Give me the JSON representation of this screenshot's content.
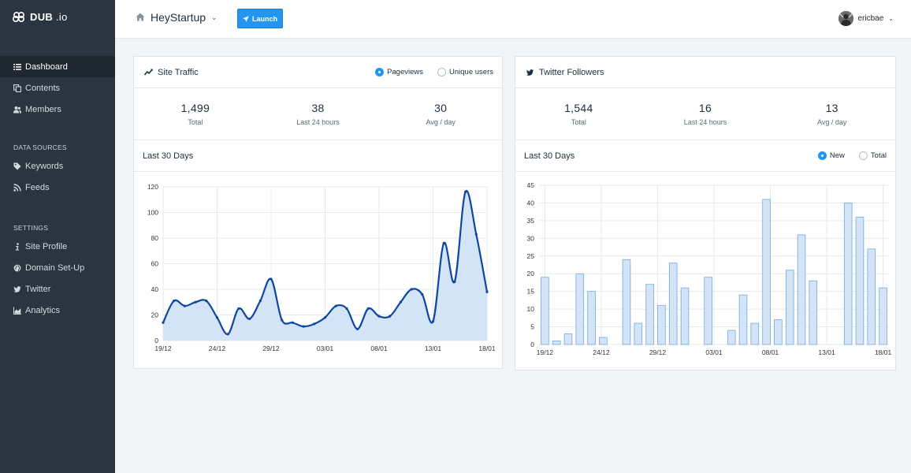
{
  "app": {
    "logo": "DUB",
    "logo_suffix": ".io"
  },
  "sidebar": {
    "main": [
      {
        "label": "Dashboard",
        "icon": "list-icon",
        "active": true
      },
      {
        "label": "Contents",
        "icon": "copy-icon"
      },
      {
        "label": "Members",
        "icon": "users-icon"
      }
    ],
    "sections": [
      {
        "heading": "DATA SOURCES",
        "items": [
          {
            "label": "Keywords",
            "icon": "tag-icon"
          },
          {
            "label": "Feeds",
            "icon": "rss-icon"
          }
        ]
      },
      {
        "heading": "SETTINGS",
        "items": [
          {
            "label": "Site Profile",
            "icon": "info-icon"
          },
          {
            "label": "Domain Set-Up",
            "icon": "globe-icon"
          },
          {
            "label": "Twitter",
            "icon": "twitter-icon"
          },
          {
            "label": "Analytics",
            "icon": "area-chart-icon"
          }
        ]
      }
    ]
  },
  "topbar": {
    "site": "HeyStartup",
    "launch": "Launch",
    "user": "ericbae"
  },
  "traffic": {
    "title": "Site Traffic",
    "toggle": [
      {
        "label": "Pageviews",
        "on": true
      },
      {
        "label": "Unique users",
        "on": false
      }
    ],
    "stats": [
      {
        "value": "1,499",
        "label": "Total"
      },
      {
        "value": "38",
        "label": "Last 24 hours"
      },
      {
        "value": "30",
        "label": "Avg / day"
      }
    ],
    "sub_title": "Last 30 Days"
  },
  "twitter": {
    "title": "Twitter Followers",
    "toggle": [
      {
        "label": "New",
        "on": true
      },
      {
        "label": "Total",
        "on": false
      }
    ],
    "stats": [
      {
        "value": "1,544",
        "label": "Total"
      },
      {
        "value": "16",
        "label": "Last 24 hours"
      },
      {
        "value": "13",
        "label": "Avg / day"
      }
    ],
    "sub_title": "Last 30 Days"
  },
  "chart_data": [
    {
      "type": "area",
      "xticks": [
        "19/12",
        "24/12",
        "29/12",
        "03/01",
        "08/01",
        "13/01",
        "18/01"
      ],
      "ylim": [
        0,
        120
      ],
      "yticks": [
        0,
        20,
        40,
        60,
        80,
        100,
        120
      ],
      "grid": true,
      "line_color": "#0d47a1",
      "fill_color": "#d4e4f7",
      "values": [
        14,
        31,
        27,
        30,
        31,
        18,
        5,
        25,
        17,
        31,
        48,
        16,
        14,
        11,
        13,
        18,
        27,
        25,
        9,
        25,
        19,
        19,
        30,
        40,
        36,
        15,
        76,
        46,
        116,
        83,
        38
      ]
    },
    {
      "type": "bar",
      "xticks": [
        "19/12",
        "24/12",
        "29/12",
        "03/01",
        "08/01",
        "13/01",
        "18/01"
      ],
      "ylim": [
        0,
        45
      ],
      "yticks": [
        0,
        5,
        10,
        15,
        20,
        25,
        30,
        35,
        40,
        45
      ],
      "grid": true,
      "bar_color": "#d4e4f7",
      "bar_border": "#6fa8e4",
      "values": [
        19,
        1,
        3,
        20,
        15,
        2,
        0,
        24,
        6,
        17,
        11,
        23,
        16,
        0,
        19,
        0,
        4,
        14,
        6,
        41,
        7,
        21,
        31,
        18,
        0,
        0,
        40,
        36,
        27,
        16
      ]
    }
  ]
}
